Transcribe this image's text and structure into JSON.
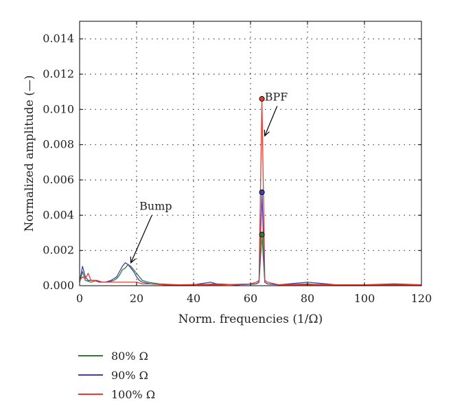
{
  "chart_data": {
    "type": "line",
    "title": "",
    "xlabel": "Norm. frequencies (1/Ω)",
    "ylabel": "Normalized amplitude (—)",
    "xlim": [
      0,
      120
    ],
    "ylim": [
      0,
      0.015
    ],
    "xticks": [
      0,
      20,
      40,
      60,
      80,
      100,
      120
    ],
    "xtick_labels": [
      "0",
      "20",
      "40",
      "60",
      "80",
      "100",
      "120"
    ],
    "yticks": [
      0,
      0.002,
      0.004,
      0.006,
      0.008,
      0.01,
      0.012,
      0.014
    ],
    "ytick_labels": [
      "0.000",
      "0.002",
      "0.004",
      "0.006",
      "0.008",
      "0.010",
      "0.012",
      "0.014"
    ],
    "grid": true,
    "legend_position": "below",
    "series": [
      {
        "name": "80% Ω",
        "color": "#2e7d32",
        "x": [
          0,
          1,
          2,
          4,
          6,
          8,
          10,
          12,
          13,
          14,
          15,
          16,
          17,
          18,
          19,
          20,
          21,
          22,
          24,
          28,
          35,
          45,
          47,
          55,
          62,
          63,
          64,
          65,
          66,
          70,
          80,
          82,
          90,
          100,
          110,
          120
        ],
        "y": [
          0.0002,
          0.0008,
          0.0003,
          0.0002,
          0.0003,
          0.0002,
          0.0002,
          0.0003,
          0.0004,
          0.0006,
          0.0009,
          0.001,
          0.0012,
          0.0011,
          0.0009,
          0.0007,
          0.0005,
          0.0003,
          0.0002,
          0.0001,
          5e-05,
          8e-05,
          0.0001,
          5e-05,
          0.0001,
          0.0002,
          0.0029,
          0.0002,
          0.0001,
          5e-05,
          0.0001,
          8e-05,
          5e-05,
          5e-05,
          5e-05,
          5e-05
        ],
        "marker": {
          "x": 64,
          "y": 0.0029
        }
      },
      {
        "name": "90% Ω",
        "color": "#3f3fb5",
        "x": [
          0,
          1,
          2,
          3,
          5,
          7,
          9,
          11,
          13,
          14,
          15,
          16,
          17,
          18,
          19,
          20,
          21,
          22,
          25,
          30,
          40,
          46,
          48,
          55,
          62,
          63,
          64,
          65,
          66,
          70,
          80,
          90,
          100,
          110,
          111,
          120
        ],
        "y": [
          0.0002,
          0.0011,
          0.0005,
          0.0003,
          0.0003,
          0.0002,
          0.0002,
          0.0003,
          0.0005,
          0.0008,
          0.0011,
          0.0013,
          0.0012,
          0.001,
          0.0008,
          0.0005,
          0.0003,
          0.0002,
          0.0001,
          5e-05,
          5e-05,
          0.0002,
          0.0001,
          5e-05,
          0.0001,
          0.0002,
          0.0053,
          0.0002,
          0.0001,
          5e-05,
          0.0002,
          5e-05,
          5e-05,
          0.0001,
          0.0001,
          5e-05
        ],
        "marker": {
          "x": 64,
          "y": 0.0053
        }
      },
      {
        "name": "100% Ω",
        "color": "#e8392b",
        "x": [
          0,
          1,
          2,
          3,
          4,
          6,
          8,
          10,
          12,
          14,
          16,
          18,
          20,
          22,
          25,
          30,
          40,
          50,
          60,
          62,
          63,
          64,
          65,
          66,
          70,
          80,
          90,
          100,
          110,
          120
        ],
        "y": [
          0.0003,
          0.0005,
          0.0004,
          0.0007,
          0.0003,
          0.0003,
          0.0002,
          0.0002,
          0.0002,
          0.0002,
          0.0002,
          0.0002,
          0.0002,
          0.0001,
          0.0001,
          5e-05,
          5e-05,
          5e-05,
          0.0001,
          0.0002,
          0.0003,
          0.0106,
          0.0003,
          0.0002,
          5e-05,
          5e-05,
          5e-05,
          5e-05,
          5e-05,
          5e-05
        ],
        "marker": {
          "x": 64,
          "y": 0.0106
        }
      }
    ],
    "annotations": [
      {
        "text": "BPF",
        "x": 65,
        "y": 0.0105,
        "arrow_to": {
          "x": 65,
          "y": 0.0085
        }
      },
      {
        "text": "Bump",
        "x": 21,
        "y": 0.0043,
        "arrow_to": {
          "x": 18,
          "y": 0.0013
        }
      }
    ]
  }
}
